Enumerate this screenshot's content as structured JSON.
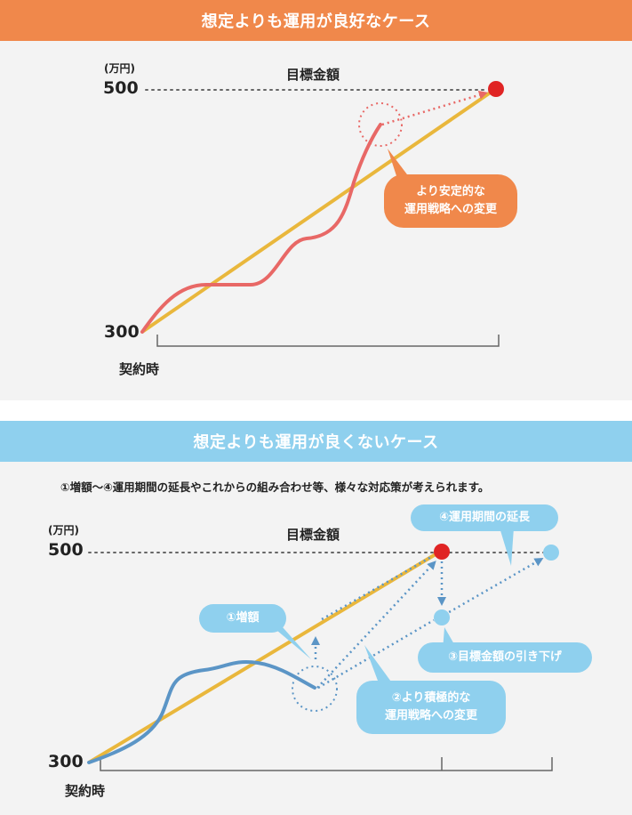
{
  "good_case": {
    "title": "想定よりも運用が良好なケース",
    "unit": "(万円)",
    "y_top": "500",
    "y_bottom": "300",
    "target_label": "目標金額",
    "start_label": "契約時",
    "callout": [
      "より安定的な",
      "運用戦略への変更"
    ],
    "colors": {
      "header": "#f0884b",
      "plan_line": "#e9b73c",
      "actual_line": "#e86866",
      "target_dot": "#e02424"
    }
  },
  "bad_case": {
    "title": "想定よりも運用が良くないケース",
    "note": "①増額〜④運用期間の延長やこれからの組み合わせ等、様々な対応策が考えられます。",
    "unit": "(万円)",
    "y_top": "500",
    "y_bottom": "300",
    "target_label": "目標金額",
    "start_label": "契約時",
    "callouts": {
      "increase": "①増額",
      "strategy": [
        "②より積極的な",
        "運用戦略への変更"
      ],
      "lower_target": "③目標金額の引き下げ",
      "extend": "④運用期間の延長"
    },
    "colors": {
      "header": "#8fd0ee",
      "plan_line": "#e9b73c",
      "actual_line": "#5b95c6",
      "target_dot": "#e02424",
      "option_dot": "#8fd0ee"
    }
  }
}
